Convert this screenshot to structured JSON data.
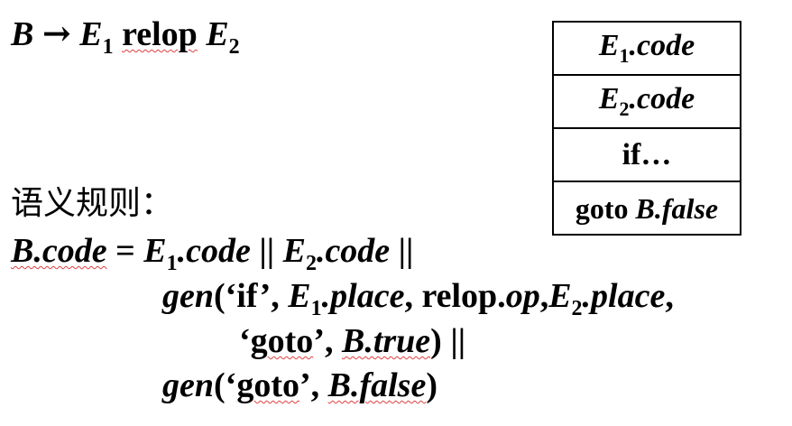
{
  "production": {
    "lhs": "B",
    "arrow": "→",
    "e1": "E",
    "e1_sub": "1",
    "relop": "relop",
    "e2": "E",
    "e2_sub": "2"
  },
  "code_layout": {
    "rows": [
      {
        "var": "E",
        "sub": "1",
        "suffix": ".code"
      },
      {
        "var": "E",
        "sub": "2",
        "suffix": ".code"
      },
      {
        "text": "if…"
      },
      {
        "kw": "goto ",
        "target": "B.false"
      }
    ]
  },
  "rules": {
    "heading": "语义规则：",
    "line1": {
      "lhs": "B.code",
      "eq": " = ",
      "e1": "E",
      "e1_sub": "1",
      "e1_code": ".code",
      "op1": " || ",
      "e2": "E",
      "e2_sub": "2",
      "e2_code": ".code",
      "op2": " ||"
    },
    "line2": {
      "gen": "gen",
      "open": "(‘if’, ",
      "e1": "E",
      "e1_sub": "1",
      "e1_place": ".place",
      "sep1": ", relop.",
      "op": "op",
      "comma": ",",
      "e2": "E",
      "e2_sub": "2",
      "e2_place": ".place",
      "sep2": ","
    },
    "line3": {
      "open": "‘",
      "goto": "goto",
      "close": "’, ",
      "target": "B.true",
      "end": ") ||"
    },
    "line4": {
      "gen": "gen",
      "open": "(‘",
      "goto": "goto",
      "close": "’, ",
      "target": "B.false",
      "end": ")"
    }
  }
}
